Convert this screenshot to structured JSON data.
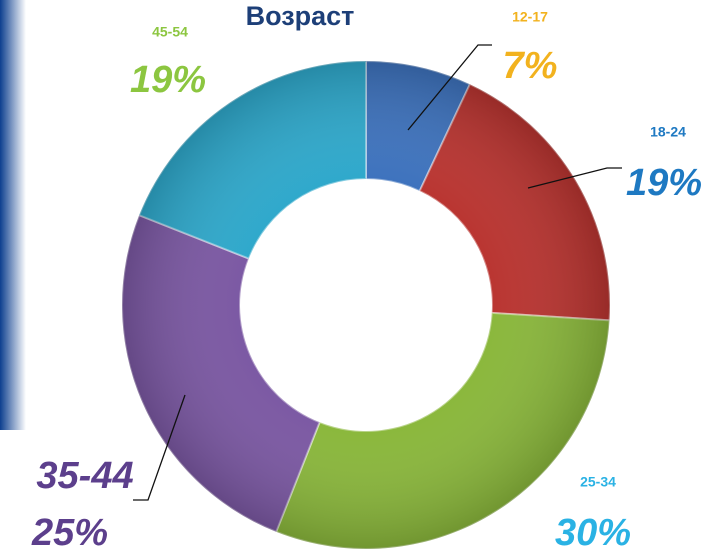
{
  "chart_data": {
    "type": "donut",
    "title": "Возраст",
    "categories": [
      "12-17",
      "18-24",
      "25-34",
      "35-44",
      "45-54"
    ],
    "values": [
      7,
      19,
      30,
      25,
      19
    ],
    "value_labels": [
      "7%",
      "19%",
      "30%",
      "25%",
      "19%"
    ],
    "colors": [
      "#3d72bd",
      "#b93430",
      "#8ab73b",
      "#7b58a3",
      "#2ea8cb"
    ],
    "label_colors": [
      "#f2b21e",
      "#1e79c2",
      "#2ab2e4",
      "#5c3f8c",
      "#8cc640"
    ]
  }
}
